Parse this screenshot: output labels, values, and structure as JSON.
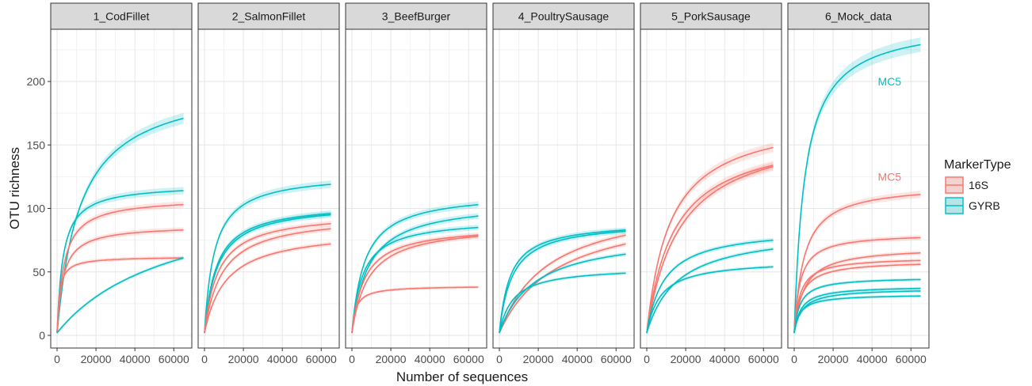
{
  "chart_data": {
    "type": "line",
    "xlabel": "Number of sequences",
    "ylabel": "OTU richness",
    "xlim": [
      0,
      66000
    ],
    "ylim": [
      0,
      230
    ],
    "x_ticks": [
      0,
      20000,
      40000,
      60000
    ],
    "y_ticks": [
      0,
      50,
      100,
      150,
      200
    ],
    "x_tick_labels": [
      "0",
      "20000",
      "40000",
      "60000"
    ],
    "y_tick_labels": [
      "0",
      "50",
      "100",
      "150",
      "200"
    ],
    "grid": true,
    "legend": {
      "title": "MarkerType",
      "placement": "right",
      "entries": [
        {
          "label": "16S",
          "color": "#F8766D"
        },
        {
          "label": "GYRB",
          "color": "#00BFC4"
        }
      ]
    },
    "colors": {
      "16S": "#F8766D",
      "GYRB": "#00BFC4"
    },
    "panels": [
      {
        "title": "1_CodFillet",
        "curves": [
          {
            "marker": "GYRB",
            "end": 171,
            "x_end": 65000,
            "k": 12000,
            "start": 2
          },
          {
            "marker": "GYRB",
            "end": 114,
            "x_end": 65000,
            "k": 3000,
            "start": 2
          },
          {
            "marker": "16S",
            "end": 103,
            "x_end": 65000,
            "k": 3500,
            "start": 2
          },
          {
            "marker": "16S",
            "end": 83,
            "x_end": 65000,
            "k": 3000,
            "start": 2
          },
          {
            "marker": "16S",
            "end": 61,
            "x_end": 65000,
            "k": 1200,
            "start": 2
          },
          {
            "marker": "GYRB",
            "end": 61,
            "x_end": 65000,
            "k": 60000,
            "start": 2
          }
        ],
        "annotations": []
      },
      {
        "title": "2_SalmonFillet",
        "curves": [
          {
            "marker": "GYRB",
            "end": 119,
            "x_end": 65000,
            "k": 5000,
            "start": 2
          },
          {
            "marker": "GYRB",
            "end": 96,
            "x_end": 65000,
            "k": 6000,
            "start": 2
          },
          {
            "marker": "GYRB",
            "end": 95,
            "x_end": 65000,
            "k": 6500,
            "start": 2
          },
          {
            "marker": "16S",
            "end": 88,
            "x_end": 65000,
            "k": 7000,
            "start": 2
          },
          {
            "marker": "16S",
            "end": 84,
            "x_end": 65000,
            "k": 9000,
            "start": 2
          },
          {
            "marker": "16S",
            "end": 72,
            "x_end": 65000,
            "k": 11000,
            "start": 2
          }
        ],
        "annotations": []
      },
      {
        "title": "3_BeefBurger",
        "curves": [
          {
            "marker": "GYRB",
            "end": 103,
            "x_end": 65000,
            "k": 6500,
            "start": 2
          },
          {
            "marker": "GYRB",
            "end": 94,
            "x_end": 65000,
            "k": 8500,
            "start": 2
          },
          {
            "marker": "GYRB",
            "end": 85,
            "x_end": 65000,
            "k": 5500,
            "start": 2
          },
          {
            "marker": "16S",
            "end": 79,
            "x_end": 65000,
            "k": 6500,
            "start": 2
          },
          {
            "marker": "16S",
            "end": 78,
            "x_end": 65000,
            "k": 8500,
            "start": 2
          },
          {
            "marker": "16S",
            "end": 38,
            "x_end": 65000,
            "k": 2000,
            "start": 2
          }
        ],
        "annotations": []
      },
      {
        "title": "4_PoultrySausage",
        "curves": [
          {
            "marker": "GYRB",
            "end": 83,
            "x_end": 65000,
            "k": 5500,
            "start": 2
          },
          {
            "marker": "GYRB",
            "end": 82,
            "x_end": 65000,
            "k": 6500,
            "start": 2
          },
          {
            "marker": "16S",
            "end": 79,
            "x_end": 65000,
            "k": 25000,
            "start": 2
          },
          {
            "marker": "16S",
            "end": 72,
            "x_end": 65000,
            "k": 30000,
            "start": 2
          },
          {
            "marker": "GYRB",
            "end": 64,
            "x_end": 65000,
            "k": 18000,
            "start": 2
          },
          {
            "marker": "GYRB",
            "end": 49,
            "x_end": 65000,
            "k": 7000,
            "start": 2
          }
        ],
        "annotations": []
      },
      {
        "title": "5_PorkSausage",
        "curves": [
          {
            "marker": "16S",
            "end": 148,
            "x_end": 65000,
            "k": 12000,
            "start": 2
          },
          {
            "marker": "16S",
            "end": 134,
            "x_end": 65000,
            "k": 14000,
            "start": 2
          },
          {
            "marker": "16S",
            "end": 133,
            "x_end": 65000,
            "k": 17000,
            "start": 2
          },
          {
            "marker": "GYRB",
            "end": 75,
            "x_end": 65000,
            "k": 9000,
            "start": 2
          },
          {
            "marker": "GYRB",
            "end": 68,
            "x_end": 65000,
            "k": 16000,
            "start": 2
          },
          {
            "marker": "GYRB",
            "end": 54,
            "x_end": 65000,
            "k": 7000,
            "start": 2
          }
        ],
        "annotations": []
      },
      {
        "title": "6_Mock_data",
        "curves": [
          {
            "marker": "GYRB",
            "end": 229,
            "x_end": 65000,
            "k": 5500,
            "start": 2
          },
          {
            "marker": "16S",
            "end": 111,
            "x_end": 65000,
            "k": 5000,
            "start": 2
          },
          {
            "marker": "16S",
            "end": 77,
            "x_end": 65000,
            "k": 3000,
            "start": 2
          },
          {
            "marker": "16S",
            "end": 65,
            "x_end": 65000,
            "k": 5000,
            "start": 2
          },
          {
            "marker": "16S",
            "end": 59,
            "x_end": 65000,
            "k": 3000,
            "start": 2
          },
          {
            "marker": "16S",
            "end": 56,
            "x_end": 65000,
            "k": 3500,
            "start": 2
          },
          {
            "marker": "GYRB",
            "end": 44,
            "x_end": 65000,
            "k": 3000,
            "start": 2
          },
          {
            "marker": "GYRB",
            "end": 37,
            "x_end": 65000,
            "k": 3500,
            "start": 2
          },
          {
            "marker": "GYRB",
            "end": 35,
            "x_end": 65000,
            "k": 4000,
            "start": 2
          },
          {
            "marker": "GYRB",
            "end": 31,
            "x_end": 65000,
            "k": 3000,
            "start": 2
          }
        ],
        "annotations": [
          {
            "text": "MC5",
            "x": 49000,
            "y": 200,
            "marker": "GYRB"
          },
          {
            "text": "MC5",
            "x": 49000,
            "y": 125,
            "marker": "16S"
          }
        ]
      }
    ]
  }
}
